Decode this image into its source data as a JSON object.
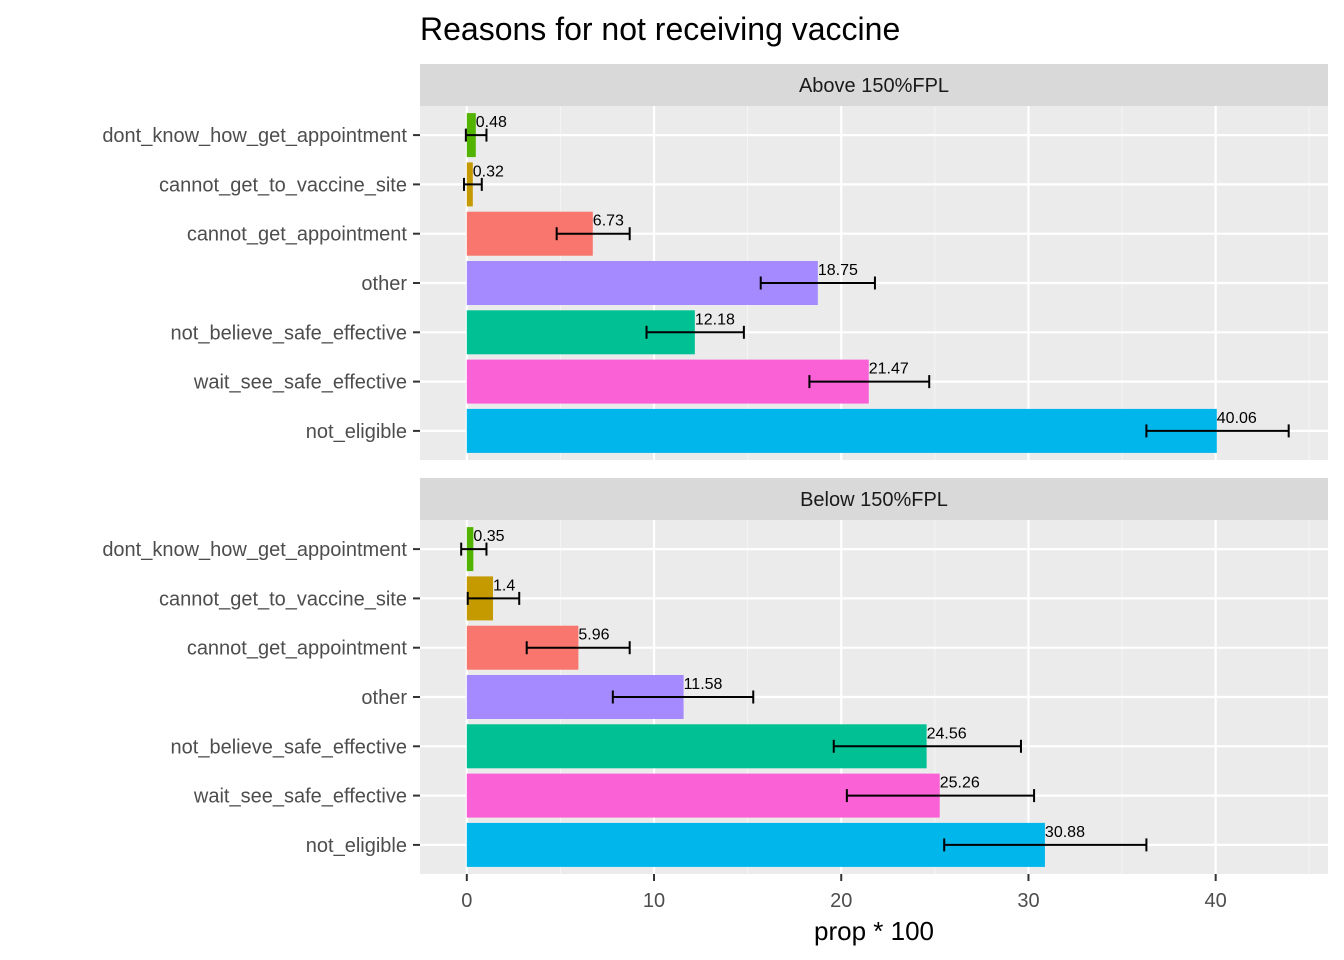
{
  "chart_data": {
    "type": "bar",
    "orientation": "horizontal",
    "title": "Reasons for not receiving vaccine",
    "xlabel": "prop * 100",
    "ylabel": "",
    "xlim": [
      -2.5,
      46
    ],
    "xticks": [
      0,
      10,
      20,
      30,
      40
    ],
    "grid": true,
    "legend": "none",
    "categories": [
      "dont_know_how_get_appointment",
      "cannot_get_to_vaccine_site",
      "cannot_get_appointment",
      "other",
      "not_believe_safe_effective",
      "wait_see_safe_effective",
      "not_eligible"
    ],
    "colors": {
      "dont_know_how_get_appointment": "#53B400",
      "cannot_get_to_vaccine_site": "#C49A00",
      "cannot_get_appointment": "#F8766D",
      "other": "#A58AFF",
      "not_believe_safe_effective": "#00C094",
      "wait_see_safe_effective": "#FB61D7",
      "not_eligible": "#00B6EB"
    },
    "panels": [
      {
        "label": "Above 150%FPL",
        "values": [
          0.48,
          0.32,
          6.73,
          18.75,
          12.18,
          21.47,
          40.06
        ],
        "value_labels": [
          "0.48",
          "0.32",
          "6.73",
          "18.75",
          "12.18",
          "21.47",
          "40.06"
        ],
        "error_low": [
          -0.05,
          -0.15,
          4.8,
          15.7,
          9.6,
          18.3,
          36.3
        ],
        "error_high": [
          1.05,
          0.8,
          8.7,
          21.8,
          14.8,
          24.7,
          43.9
        ]
      },
      {
        "label": "Below 150%FPL",
        "values": [
          0.35,
          1.4,
          5.96,
          11.58,
          24.56,
          25.26,
          30.88
        ],
        "value_labels": [
          "0.35",
          "1.4",
          "5.96",
          "11.58",
          "24.56",
          "25.26",
          "30.88"
        ],
        "error_low": [
          -0.3,
          0.05,
          3.2,
          7.8,
          19.6,
          20.3,
          25.5
        ],
        "error_high": [
          1.05,
          2.8,
          8.7,
          15.3,
          29.6,
          30.3,
          36.3
        ]
      }
    ]
  }
}
